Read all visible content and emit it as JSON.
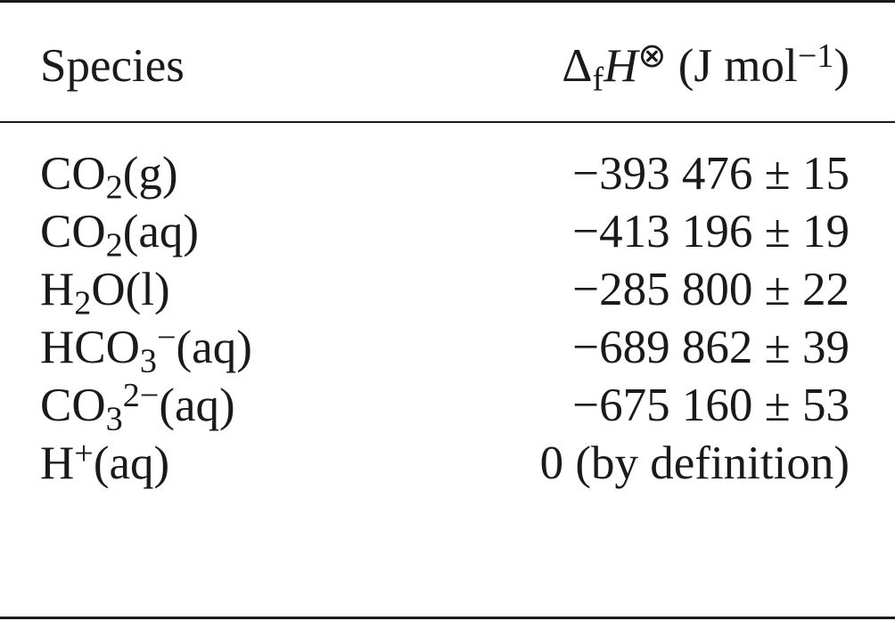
{
  "table": {
    "header": {
      "species": "Species",
      "quantity_delta": "Δ",
      "quantity_sub": "f",
      "quantity_symbol": "H",
      "quantity_sup": "⊗",
      "unit_open": "(J mol",
      "unit_sup": "−1",
      "unit_close": ")"
    },
    "rows": [
      {
        "base": "CO",
        "sub": "2",
        "sup": "",
        "phase": "(g)",
        "value": "−393 476 ± 15"
      },
      {
        "base": "CO",
        "sub": "2",
        "sup": "",
        "phase": "(aq)",
        "value": "−413 196 ± 19"
      },
      {
        "base": "H",
        "sub": "2",
        "sup": "",
        "phase": "O(l)",
        "value": "−285 800 ± 22"
      },
      {
        "base": "HCO",
        "sub": "3",
        "sup": "−",
        "phase": "(aq)",
        "value": "−689 862 ± 39"
      },
      {
        "base": "CO",
        "sub": "3",
        "sup": "2−",
        "phase": "(aq)",
        "value": "−675 160 ± 53"
      },
      {
        "base": "H",
        "sub": "",
        "sup": "+",
        "phase": "(aq)",
        "value": "0 (by definition)"
      }
    ]
  }
}
